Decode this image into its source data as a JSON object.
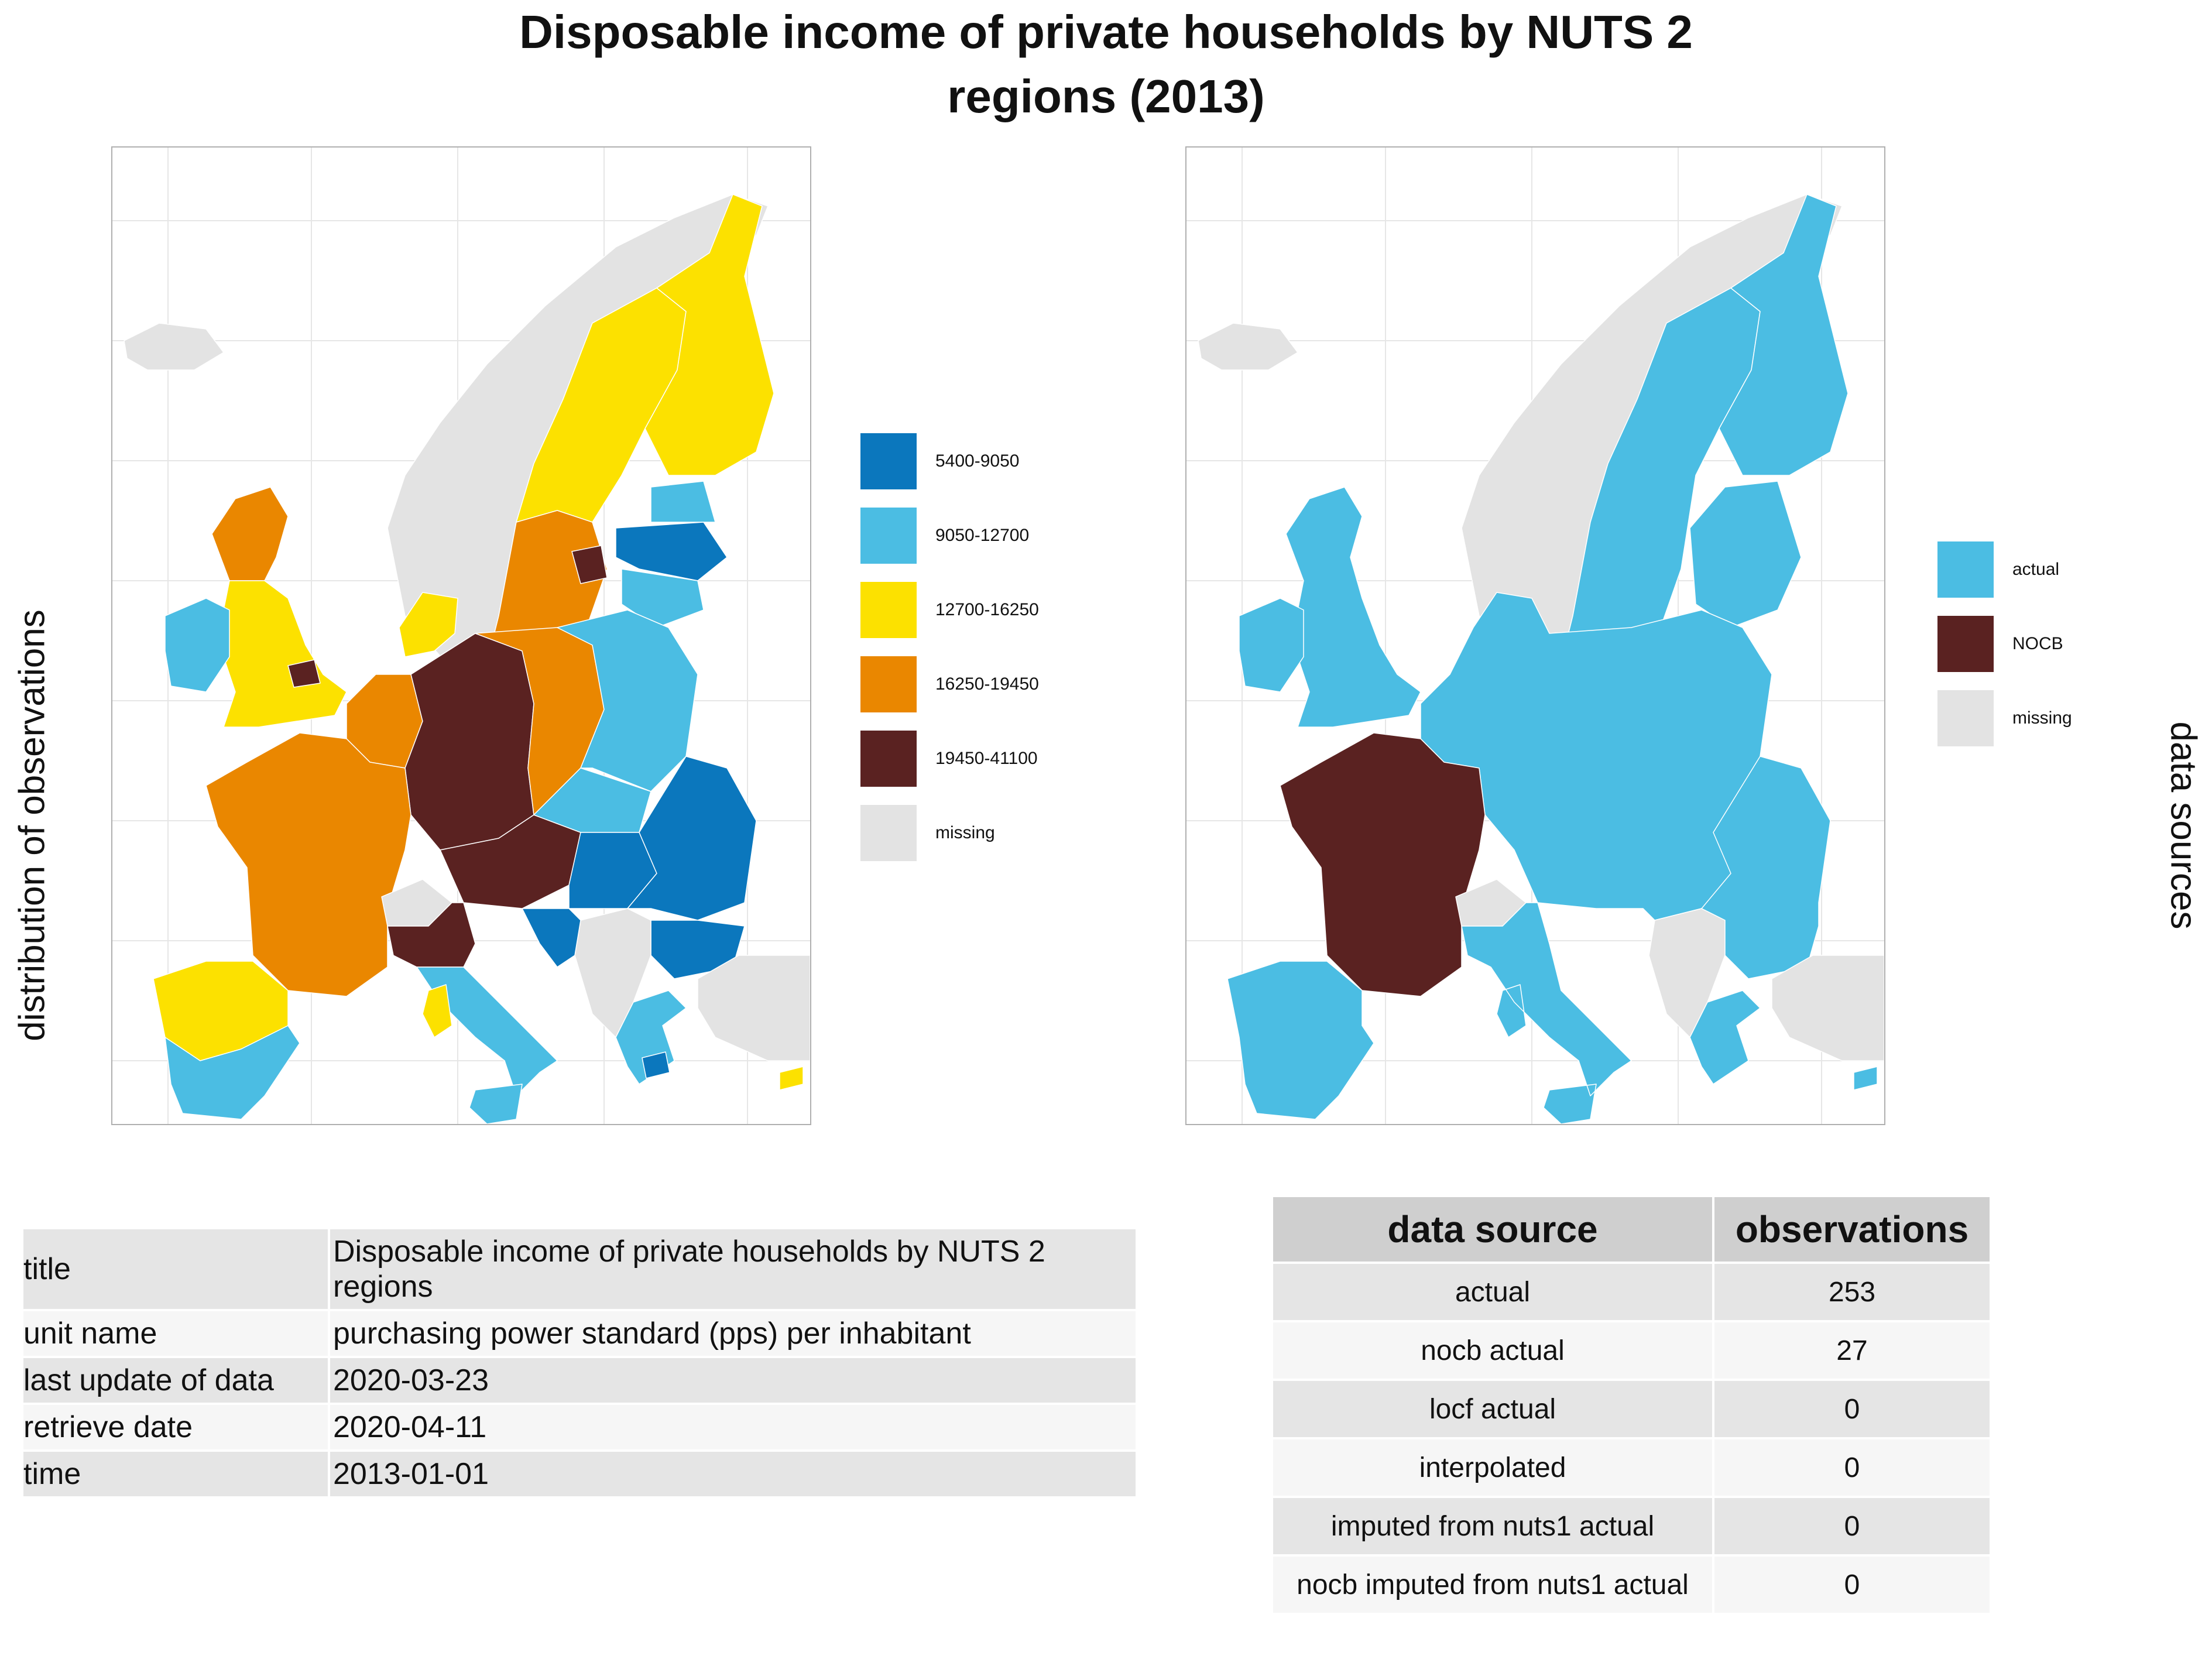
{
  "title_lines": [
    "Disposable income of private households by NUTS 2",
    "regions (2013)"
  ],
  "left_axis_label": "distribution of observations",
  "right_axis_label": "data sources",
  "left_map": {
    "legend": [
      {
        "label": "5400-9050",
        "color": "#0b77bd"
      },
      {
        "label": "9050-12700",
        "color": "#4bbde3"
      },
      {
        "label": "12700-16250",
        "color": "#fce100"
      },
      {
        "label": "16250-19450",
        "color": "#ea8700"
      },
      {
        "label": "19450-41100",
        "color": "#5a2221"
      },
      {
        "label": "missing",
        "color": "#e3e3e3"
      }
    ],
    "regions": [
      {
        "name": "Norway",
        "class": "missing"
      },
      {
        "name": "Iceland",
        "class": "missing"
      },
      {
        "name": "Sweden",
        "class": "12700-16250"
      },
      {
        "name": "Sweden south",
        "class": "16250-19450"
      },
      {
        "name": "Stockholm",
        "class": "19450-41100"
      },
      {
        "name": "Finland",
        "class": "12700-16250"
      },
      {
        "name": "Estonia",
        "class": "9050-12700"
      },
      {
        "name": "Latvia",
        "class": "5400-9050"
      },
      {
        "name": "Lithuania",
        "class": "9050-12700"
      },
      {
        "name": "Scotland",
        "class": "16250-19450"
      },
      {
        "name": "England",
        "class": "12700-16250"
      },
      {
        "name": "London",
        "class": "19450-41100"
      },
      {
        "name": "Ireland",
        "class": "9050-12700"
      },
      {
        "name": "Denmark",
        "class": "12700-16250"
      },
      {
        "name": "Benelux",
        "class": "16250-19450"
      },
      {
        "name": "Germany west",
        "class": "19450-41100"
      },
      {
        "name": "Germany east",
        "class": "16250-19450"
      },
      {
        "name": "Poland",
        "class": "9050-12700"
      },
      {
        "name": "France",
        "class": "16250-19450"
      },
      {
        "name": "Switzerland",
        "class": "missing"
      },
      {
        "name": "Austria",
        "class": "19450-41100"
      },
      {
        "name": "Czechia",
        "class": "9050-12700"
      },
      {
        "name": "Hungary",
        "class": "5400-9050"
      },
      {
        "name": "Romania",
        "class": "5400-9050"
      },
      {
        "name": "Bulgaria",
        "class": "5400-9050"
      },
      {
        "name": "Western Balkans",
        "class": "missing"
      },
      {
        "name": "Croatia",
        "class": "5400-9050"
      },
      {
        "name": "Italy north",
        "class": "19450-41100"
      },
      {
        "name": "Italy south",
        "class": "9050-12700"
      },
      {
        "name": "Sicily",
        "class": "9050-12700"
      },
      {
        "name": "Sardinia",
        "class": "12700-16250"
      },
      {
        "name": "Iberia north",
        "class": "12700-16250"
      },
      {
        "name": "Spain",
        "class": "9050-12700"
      },
      {
        "name": "Greece",
        "class": "9050-12700"
      },
      {
        "name": "Attica",
        "class": "5400-9050"
      },
      {
        "name": "Turkey",
        "class": "missing"
      },
      {
        "name": "Cyprus",
        "class": "12700-16250"
      }
    ]
  },
  "right_map": {
    "legend": [
      {
        "label": "actual",
        "color": "#4bbde3"
      },
      {
        "label": "NOCB",
        "color": "#5a2221"
      },
      {
        "label": "missing",
        "color": "#e3e3e3"
      }
    ],
    "regions": [
      {
        "name": "Norway",
        "class": "missing"
      },
      {
        "name": "Iceland",
        "class": "missing"
      },
      {
        "name": "Scandinavia",
        "class": "actual"
      },
      {
        "name": "Finland",
        "class": "actual"
      },
      {
        "name": "Baltics",
        "class": "actual"
      },
      {
        "name": "British Isles",
        "class": "actual"
      },
      {
        "name": "Ireland",
        "class": "actual"
      },
      {
        "name": "Central Europe",
        "class": "actual"
      },
      {
        "name": "France",
        "class": "NOCB"
      },
      {
        "name": "Corsica",
        "class": "NOCB"
      },
      {
        "name": "Switzerland",
        "class": "missing"
      },
      {
        "name": "Iberia",
        "class": "actual"
      },
      {
        "name": "Italy",
        "class": "actual"
      },
      {
        "name": "Western Balkans",
        "class": "missing"
      },
      {
        "name": "Romania Bulgaria",
        "class": "actual"
      },
      {
        "name": "Greece",
        "class": "actual"
      },
      {
        "name": "Turkey",
        "class": "missing"
      },
      {
        "name": "Cyprus",
        "class": "actual"
      }
    ]
  },
  "metadata_table": [
    {
      "key": "title",
      "value": "Disposable income of private households by NUTS 2 regions"
    },
    {
      "key": "unit name",
      "value": "purchasing power standard (pps) per inhabitant"
    },
    {
      "key": "last update of data",
      "value": "2020-03-23"
    },
    {
      "key": "retrieve date",
      "value": "2020-04-11"
    },
    {
      "key": "time",
      "value": "2013-01-01"
    }
  ],
  "source_table": {
    "headers": [
      "data source",
      "observations"
    ],
    "rows": [
      {
        "source": "actual",
        "observations": "253"
      },
      {
        "source": "nocb actual",
        "observations": "27"
      },
      {
        "source": "locf actual",
        "observations": "0"
      },
      {
        "source": "interpolated",
        "observations": "0"
      },
      {
        "source": "imputed from nuts1 actual",
        "observations": "0"
      },
      {
        "source": "nocb imputed from nuts1 actual",
        "observations": "0"
      }
    ]
  }
}
